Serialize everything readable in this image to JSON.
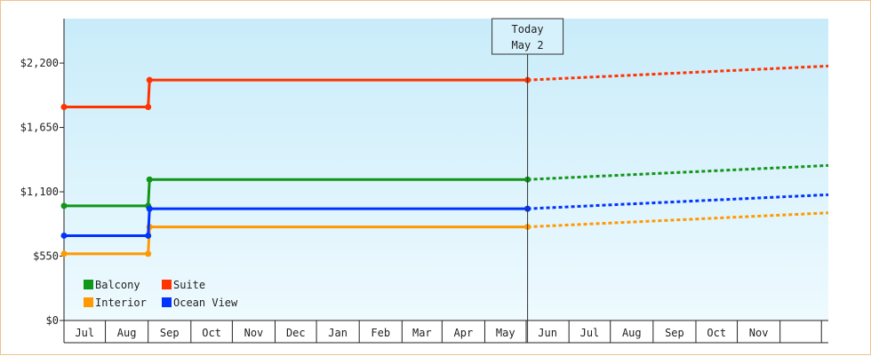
{
  "chart_data": {
    "type": "line",
    "step": true,
    "x_tick_labels": [
      "Jul",
      "Aug",
      "Sep",
      "Oct",
      "Nov",
      "Dec",
      "Jan",
      "Feb",
      "Mar",
      "Apr",
      "May",
      "Jun",
      "Jul",
      "Aug",
      "Sep",
      "Oct",
      "Nov"
    ],
    "y_ticks": [
      "$0",
      "$550",
      "$1,100",
      "$1,650",
      "$2,200"
    ],
    "ylim": [
      0,
      2200
    ],
    "ylim_displayed_max": 2580,
    "x_start": "2023-06-01",
    "x_end": "2024-12-06",
    "today": {
      "date": "2024-05-02",
      "label_line1": "Today",
      "label_line2": "May 2"
    },
    "legend": {
      "placement": "bottom-left",
      "columns": 2
    },
    "series": [
      {
        "name": "Balcony",
        "color": "#109618",
        "x": [
          "2023-06-01",
          "2023-08-01",
          "2023-08-02",
          "2024-05-02"
        ],
        "values": [
          980,
          980,
          1205,
          1205
        ],
        "projection": {
          "x": [
            "2024-05-02",
            "2024-12-06"
          ],
          "values": [
            1205,
            1325
          ]
        }
      },
      {
        "name": "Suite",
        "color": "#ff3300",
        "x": [
          "2023-06-01",
          "2023-08-01",
          "2023-08-02",
          "2024-05-02"
        ],
        "values": [
          1825,
          1825,
          2055,
          2055
        ],
        "projection": {
          "x": [
            "2024-05-02",
            "2024-12-06"
          ],
          "values": [
            2055,
            2175
          ]
        }
      },
      {
        "name": "Interior",
        "color": "#ff9900",
        "x": [
          "2023-06-01",
          "2023-08-01",
          "2023-08-02",
          "2024-05-02"
        ],
        "values": [
          570,
          570,
          800,
          800
        ],
        "projection": {
          "x": [
            "2024-05-02",
            "2024-12-06"
          ],
          "values": [
            800,
            920
          ]
        }
      },
      {
        "name": "Ocean View",
        "color": "#0033ff",
        "x": [
          "2023-06-01",
          "2023-08-01",
          "2023-08-02",
          "2024-05-02"
        ],
        "values": [
          725,
          725,
          955,
          955
        ],
        "projection": {
          "x": [
            "2024-05-02",
            "2024-12-06"
          ],
          "values": [
            955,
            1075
          ]
        }
      }
    ]
  }
}
